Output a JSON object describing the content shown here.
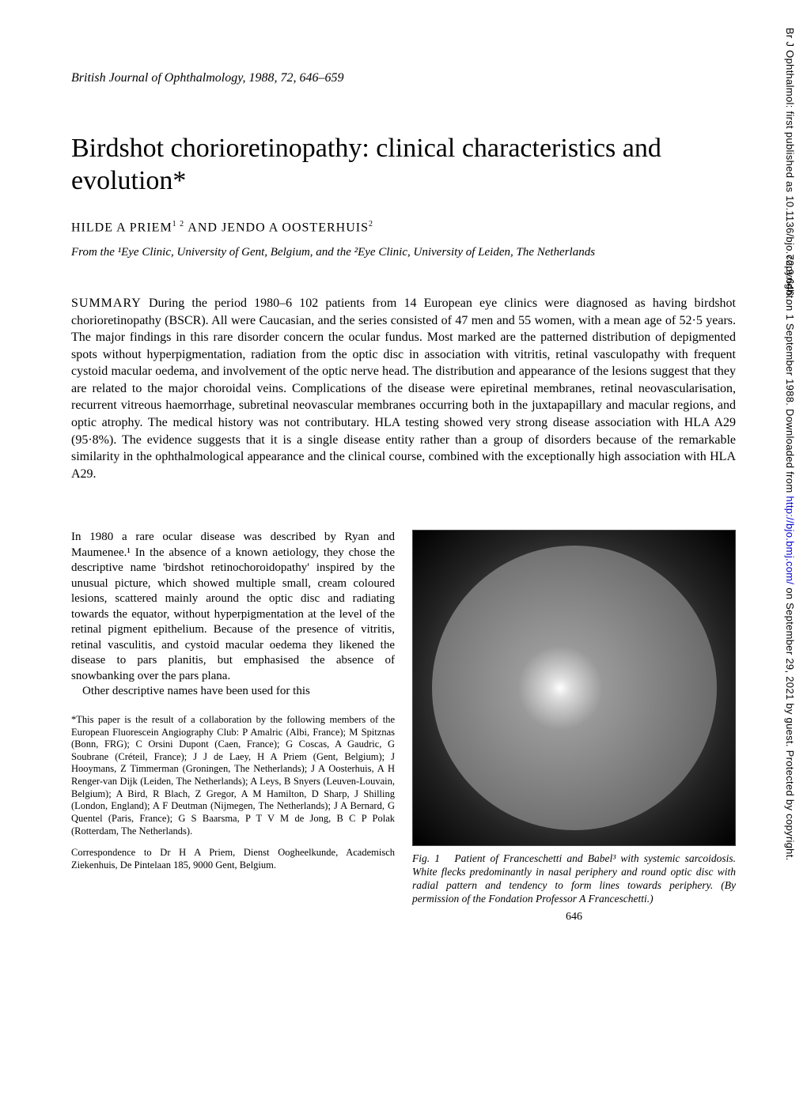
{
  "journal_ref": "British Journal of Ophthalmology, 1988, 72, 646–659",
  "title": "Birdshot chorioretinopathy: clinical characteristics and evolution*",
  "authors_html": "HILDE A PRIEM¹² AND JENDO A OOSTERHUIS²",
  "authors": {
    "a1": "HILDE A PRIEM",
    "sup1": "1 2",
    "and": " AND ",
    "a2": "JENDO A OOSTERHUIS",
    "sup2": "2"
  },
  "affiliations": "From the ¹Eye Clinic, University of Gent, Belgium, and the ²Eye Clinic, University of Leiden, The Netherlands",
  "summary_label": "SUMMARY",
  "summary_text": " During the period 1980–6 102 patients from 14 European eye clinics were diagnosed as having birdshot chorioretinopathy (BSCR). All were Caucasian, and the series consisted of 47 men and 55 women, with a mean age of 52·5 years. The major findings in this rare disorder concern the ocular fundus. Most marked are the patterned distribution of depigmented spots without hyperpigmentation, radiation from the optic disc in association with vitritis, retinal vasculopathy with frequent cystoid macular oedema, and involvement of the optic nerve head. The distribution and appearance of the lesions suggest that they are related to the major choroidal veins. Complications of the disease were epiretinal membranes, retinal neovascularisation, recurrent vitreous haemorrhage, subretinal neovascular membranes occurring both in the juxtapapillary and macular regions, and optic atrophy. The medical history was not contributary. HLA testing showed very strong disease association with HLA A29 (95·8%). The evidence suggests that it is a single disease entity rather than a group of disorders because of the remarkable similarity in the ophthalmological appearance and the clinical course, combined with the exceptionally high association with HLA A29.",
  "body_p1": "In 1980 a rare ocular disease was described by Ryan and Maumenee.¹ In the absence of a known aetiology, they chose the descriptive name 'birdshot retinochoroidopathy' inspired by the unusual picture, which showed multiple small, cream coloured lesions, scattered mainly around the optic disc and radiating towards the equator, without hyperpigmentation at the level of the retinal pigment epithelium. Because of the presence of vitritis, retinal vasculitis, and cystoid macular oedema they likened the disease to pars planitis, but emphasised the absence of snowbanking over the pars plana.",
  "body_p2": "Other descriptive names have been used for this",
  "footnote": "*This paper is the result of a collaboration by the following members of the European Fluorescein Angiography Club: P Amalric (Albi, France); M Spitznas (Bonn, FRG); C Orsini Dupont (Caen, France); G Coscas, A Gaudric, G Soubrane (Créteil, France); J J de Laey, H A Priem (Gent, Belgium); J Hooymans, Z Timmerman (Groningen, The Netherlands); J A Oosterhuis, A H Renger-van Dijk (Leiden, The Netherlands); A Leys, B Snyers (Leuven-Louvain, Belgium); A Bird, R Blach, Z Gregor, A M Hamilton, D Sharp, J Shilling (London, England); A F Deutman (Nijmegen, The Netherlands); J A Bernard, G Quentel (Paris, France); G S Baarsma, P T V M de Jong, B C P Polak (Rotterdam, The Netherlands).",
  "correspondence": "Correspondence to Dr H A Priem, Dienst Oogheelkunde, Academisch Ziekenhuis, De Pintelaan 185, 9000 Gent, Belgium.",
  "figure": {
    "label": "Fig. 1",
    "caption": "Patient of Franceschetti and Babel³ with systemic sarcoidosis. White flecks predominantly in nasal periphery and round optic disc with radial pattern and tendency to form lines towards periphery. (By permission of the Fondation Professor A Franceschetti.)"
  },
  "page_number": "646",
  "sidebar": {
    "prefix": "Br J Ophthalmol: first published as 10.1136/bjo.72.9.646 on 1 September 1988. Downloaded from ",
    "link": "http://bjo.bmj.com/",
    "suffix": " on September 29, 2021 by guest. Protected by copyright."
  },
  "colors": {
    "text": "#000000",
    "background": "#ffffff",
    "link": "#0000cc"
  }
}
